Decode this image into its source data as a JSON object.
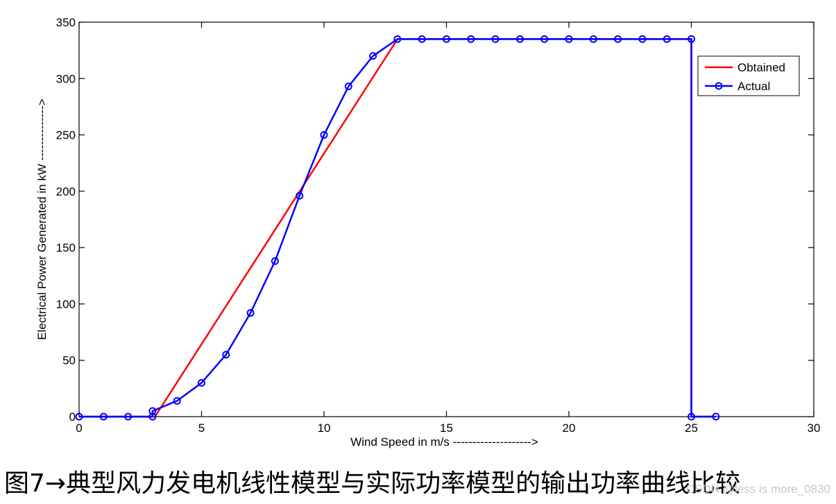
{
  "chart_data": {
    "type": "line",
    "xlabel": "Wind Speed in m/s -------------------->",
    "ylabel": "Electrical Power Generated in kW -------------->",
    "xlim": [
      0,
      30
    ],
    "ylim": [
      0,
      350
    ],
    "xticks": [
      "0",
      "5",
      "10",
      "15",
      "20",
      "25",
      "30"
    ],
    "yticks": [
      "0",
      "50",
      "100",
      "150",
      "200",
      "250",
      "300",
      "350"
    ],
    "grid": false,
    "legend_position": "top-right",
    "series": [
      {
        "name": "Obtained",
        "color": "#ff0000",
        "marker": "none",
        "x": [
          0,
          1,
          2,
          3,
          3.1,
          13,
          14,
          15,
          16,
          17,
          18,
          19,
          20,
          21,
          22,
          23,
          24,
          25,
          25,
          26
        ],
        "y": [
          0,
          0,
          0,
          0,
          0,
          335,
          335,
          335,
          335,
          335,
          335,
          335,
          335,
          335,
          335,
          335,
          335,
          335,
          0,
          0
        ]
      },
      {
        "name": "Actual",
        "color": "#0000ff",
        "marker": "circle",
        "x": [
          0,
          1,
          2,
          3,
          3,
          4,
          5,
          6,
          7,
          8,
          9,
          10,
          11,
          12,
          13,
          14,
          15,
          16,
          17,
          18,
          19,
          20,
          21,
          22,
          23,
          24,
          25,
          25,
          26
        ],
        "y": [
          0,
          0,
          0,
          0,
          5,
          14,
          30,
          55,
          92,
          138,
          196,
          250,
          293,
          320,
          335,
          335,
          335,
          335,
          335,
          335,
          335,
          335,
          335,
          335,
          335,
          335,
          335,
          0,
          0
        ]
      }
    ]
  },
  "caption": "图7→典型风力发电机线性模型与实际功率模型的输出功率曲线比较",
  "watermark": "CSDN @less is more_0830"
}
